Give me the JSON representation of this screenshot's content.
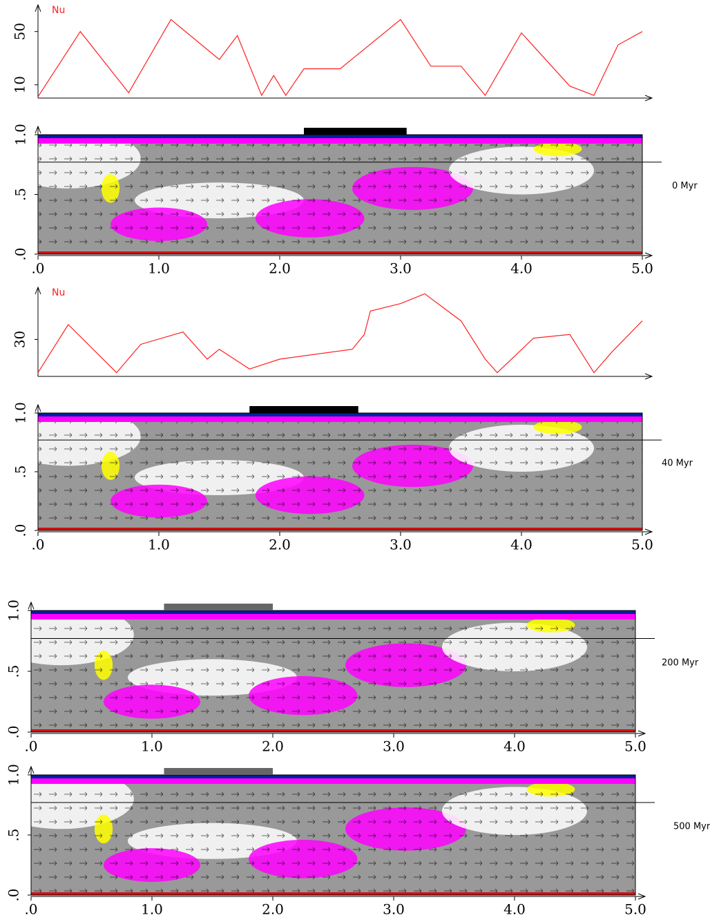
{
  "chart_data": [
    {
      "type": "line",
      "label": "Nu",
      "color": "#ff2020",
      "x": [
        0,
        0.35,
        0.75,
        1.1,
        1.5,
        1.65,
        1.85,
        1.95,
        2.05,
        2.2,
        2.5,
        3.0,
        3.25,
        3.5,
        3.7,
        4.0,
        4.4,
        4.6,
        4.8,
        5.0
      ],
      "values": [
        1,
        50,
        4,
        59,
        29,
        47,
        2,
        17,
        2,
        22,
        22,
        59,
        24,
        24,
        2,
        49,
        9,
        2,
        40,
        50
      ],
      "xlim": [
        0,
        5
      ],
      "ylim": [
        0,
        68
      ],
      "yticks": [
        10,
        50
      ]
    },
    {
      "type": "field",
      "annotation": "0 Myr",
      "xlim": [
        0,
        5
      ],
      "ylim": [
        0,
        1
      ],
      "xticks": [
        {
          "value": 0,
          "label": ".0"
        },
        {
          "value": 1,
          "label": "1.0"
        },
        {
          "value": 2,
          "label": "2.0"
        },
        {
          "value": 3,
          "label": "3.0"
        },
        {
          "value": 4,
          "label": "4.0"
        },
        {
          "value": 5,
          "label": "5.0"
        }
      ],
      "yticks": [
        {
          "value": 0,
          "label": ".0"
        },
        {
          "value": 0.5,
          "label": ".5"
        },
        {
          "value": 1,
          "label": "1.0"
        }
      ],
      "continent": [
        2.2,
        3.05
      ],
      "continent_color": "#000000",
      "reference_depth": 0.77
    },
    {
      "type": "line",
      "label": "Nu",
      "color": "#ff2020",
      "x": [
        0,
        0.25,
        0.65,
        0.85,
        1.2,
        1.4,
        1.5,
        1.75,
        2.0,
        2.6,
        2.7,
        2.75,
        3.0,
        3.2,
        3.5,
        3.7,
        3.8,
        4.1,
        4.4,
        4.6,
        4.75,
        5.0
      ],
      "values": [
        3,
        42,
        3,
        26,
        36,
        14,
        22,
        6,
        14,
        22,
        34,
        53,
        59,
        67,
        45,
        14,
        3,
        31,
        34,
        3,
        20,
        45
      ],
      "xlim": [
        0,
        5
      ],
      "ylim": [
        0,
        70
      ],
      "yticks": [
        30
      ]
    },
    {
      "type": "field",
      "annotation": "40 Myr",
      "xlim": [
        0,
        5
      ],
      "ylim": [
        0,
        1
      ],
      "xticks": [
        {
          "value": 0,
          "label": ".0"
        },
        {
          "value": 1,
          "label": "1.0"
        },
        {
          "value": 2,
          "label": "2.0"
        },
        {
          "value": 3,
          "label": "3.0"
        },
        {
          "value": 4,
          "label": "4.0"
        },
        {
          "value": 5,
          "label": "5.0"
        }
      ],
      "yticks": [
        {
          "value": 0,
          "label": ".0"
        },
        {
          "value": 0.5,
          "label": ".5"
        },
        {
          "value": 1,
          "label": "1.0"
        }
      ],
      "continent": [
        1.75,
        2.65
      ],
      "continent_color": "#000000",
      "reference_depth": 0.77
    },
    {
      "type": "field",
      "annotation": "200 Myr",
      "xlim": [
        0,
        5
      ],
      "ylim": [
        0,
        1
      ],
      "xticks": [
        {
          "value": 0,
          "label": ".0"
        },
        {
          "value": 1,
          "label": "1.0"
        },
        {
          "value": 2,
          "label": "2.0"
        },
        {
          "value": 3,
          "label": "3.0"
        },
        {
          "value": 4,
          "label": "4.0"
        },
        {
          "value": 5,
          "label": "5.0"
        }
      ],
      "yticks": [
        {
          "value": 0,
          "label": ".0"
        },
        {
          "value": 0.5,
          "label": ".5"
        },
        {
          "value": 1,
          "label": "1.0"
        }
      ],
      "continent": [
        1.1,
        2.0
      ],
      "continent_color": "#666666",
      "reference_depth": 0.77
    },
    {
      "type": "field",
      "annotation": "500 Myr",
      "xlim": [
        0,
        5
      ],
      "ylim": [
        0,
        1
      ],
      "xticks": [
        {
          "value": 0,
          "label": ".0"
        },
        {
          "value": 1,
          "label": "1.0"
        },
        {
          "value": 2,
          "label": "2.0"
        },
        {
          "value": 3,
          "label": "3.0"
        },
        {
          "value": 4,
          "label": "4.0"
        },
        {
          "value": 5,
          "label": "5.0"
        }
      ],
      "yticks": [
        {
          "value": 0,
          "label": ".0"
        },
        {
          "value": 0.5,
          "label": ".5"
        },
        {
          "value": 1,
          "label": "1.0"
        }
      ],
      "continent": [
        1.1,
        2.0
      ],
      "continent_color": "#666666",
      "reference_depth": 0.77
    }
  ]
}
